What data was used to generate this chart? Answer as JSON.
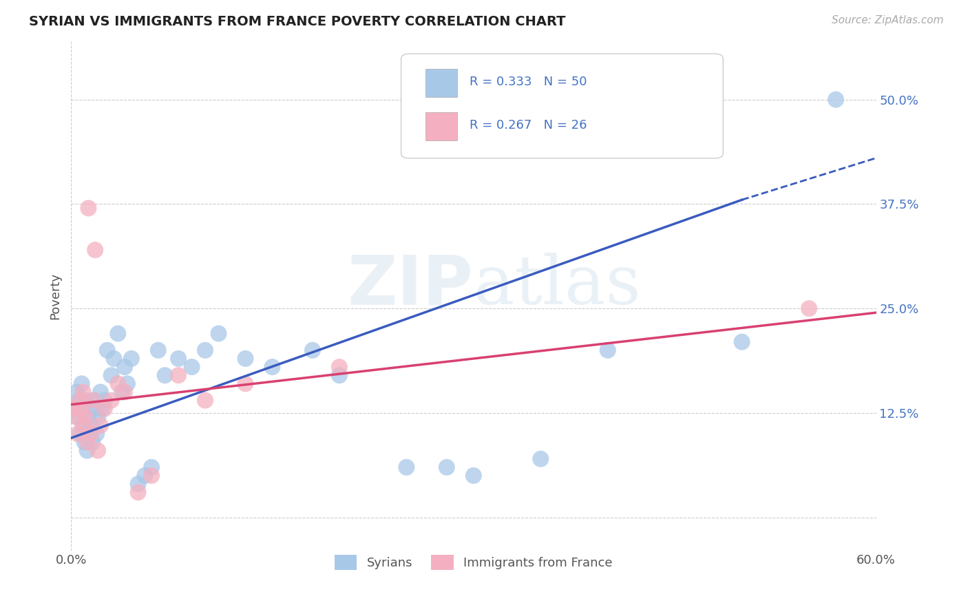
{
  "title": "SYRIAN VS IMMIGRANTS FROM FRANCE POVERTY CORRELATION CHART",
  "source": "Source: ZipAtlas.com",
  "ylabel_label": "Poverty",
  "yticks": [
    0.0,
    0.125,
    0.25,
    0.375,
    0.5
  ],
  "ytick_labels": [
    "",
    "12.5%",
    "25.0%",
    "37.5%",
    "50.0%"
  ],
  "xlim": [
    0.0,
    0.6
  ],
  "ylim": [
    -0.04,
    0.57
  ],
  "legend_entries": [
    {
      "label": "R = 0.333   N = 50",
      "color": "#a8c8e8"
    },
    {
      "label": "R = 0.267   N = 26",
      "color": "#f4b0c0"
    }
  ],
  "legend_bottom": [
    "Syrians",
    "Immigrants from France"
  ],
  "syrians_color": "#a8c8e8",
  "france_color": "#f4b0c0",
  "blue_line_color": "#3a5bbf",
  "pink_line_color": "#d94070",
  "grid_color": "#cccccc",
  "background_color": "#ffffff",
  "syrians_x": [
    0.002,
    0.004,
    0.005,
    0.006,
    0.007,
    0.008,
    0.009,
    0.01,
    0.01,
    0.011,
    0.012,
    0.013,
    0.014,
    0.015,
    0.016,
    0.017,
    0.018,
    0.019,
    0.02,
    0.022,
    0.023,
    0.025,
    0.027,
    0.03,
    0.032,
    0.035,
    0.038,
    0.04,
    0.042,
    0.045,
    0.05,
    0.055,
    0.06,
    0.065,
    0.07,
    0.08,
    0.09,
    0.1,
    0.11,
    0.13,
    0.15,
    0.18,
    0.2,
    0.25,
    0.28,
    0.3,
    0.35,
    0.4,
    0.5,
    0.57
  ],
  "syrians_y": [
    0.13,
    0.15,
    0.12,
    0.14,
    0.1,
    0.16,
    0.11,
    0.09,
    0.13,
    0.14,
    0.08,
    0.12,
    0.1,
    0.11,
    0.09,
    0.14,
    0.13,
    0.1,
    0.12,
    0.15,
    0.13,
    0.14,
    0.2,
    0.17,
    0.19,
    0.22,
    0.15,
    0.18,
    0.16,
    0.19,
    0.04,
    0.05,
    0.06,
    0.2,
    0.17,
    0.19,
    0.18,
    0.2,
    0.22,
    0.19,
    0.18,
    0.2,
    0.17,
    0.06,
    0.06,
    0.05,
    0.07,
    0.2,
    0.21,
    0.5
  ],
  "france_x": [
    0.002,
    0.004,
    0.005,
    0.007,
    0.008,
    0.009,
    0.01,
    0.011,
    0.012,
    0.013,
    0.015,
    0.017,
    0.018,
    0.02,
    0.022,
    0.025,
    0.03,
    0.035,
    0.04,
    0.05,
    0.06,
    0.08,
    0.1,
    0.13,
    0.2,
    0.55
  ],
  "france_y": [
    0.13,
    0.12,
    0.1,
    0.14,
    0.13,
    0.15,
    0.11,
    0.12,
    0.09,
    0.37,
    0.1,
    0.14,
    0.32,
    0.08,
    0.11,
    0.13,
    0.14,
    0.16,
    0.15,
    0.03,
    0.05,
    0.17,
    0.14,
    0.16,
    0.18,
    0.25
  ],
  "blue_line_x_start": 0.0,
  "blue_line_x_solid_end": 0.5,
  "blue_line_x_dashed_end": 0.6,
  "blue_line_y_start": 0.095,
  "blue_line_y_solid_end": 0.38,
  "blue_line_y_dashed_end": 0.43,
  "pink_line_x_start": 0.0,
  "pink_line_x_end": 0.6,
  "pink_line_y_start": 0.135,
  "pink_line_y_end": 0.245
}
